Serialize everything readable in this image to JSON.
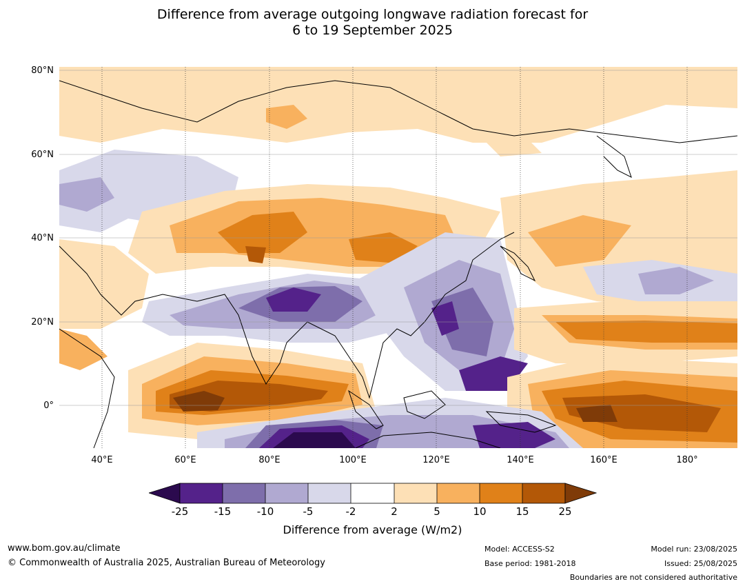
{
  "title_line1": "Difference from average outgoing longwave radiation forecast for",
  "title_line2": "6 to 19 September 2025",
  "lat_labels": [
    "80°N",
    "60°N",
    "40°N",
    "20°N",
    "0°"
  ],
  "lon_labels": [
    "40°E",
    "60°E",
    "80°E",
    "100°E",
    "120°E",
    "140°E",
    "160°E",
    "180°"
  ],
  "colorbar": {
    "ticks": [
      "-25",
      "-15",
      "-10",
      "-5",
      "-2",
      "2",
      "5",
      "10",
      "15",
      "25"
    ],
    "colors": [
      "#2b0a4e",
      "#54228a",
      "#7e6eab",
      "#b0a9d1",
      "#d8d8ea",
      "#ffffff",
      "#fde0b6",
      "#f8b15e",
      "#e08119",
      "#b35807",
      "#7f3b08"
    ],
    "label": "Difference from average (W/m2)"
  },
  "footer": {
    "website": "www.bom.gov.au/climate",
    "copyright": "© Commonwealth of Australia 2025, Australian Bureau of Meteorology",
    "model": "Model: ACCESS-S2",
    "base_period": "Base period: 1981-2018",
    "model_run": "Model run: 23/08/2025",
    "issued": "Issued: 25/08/2025",
    "disclaimer": "Boundaries are not considered authoritative"
  }
}
